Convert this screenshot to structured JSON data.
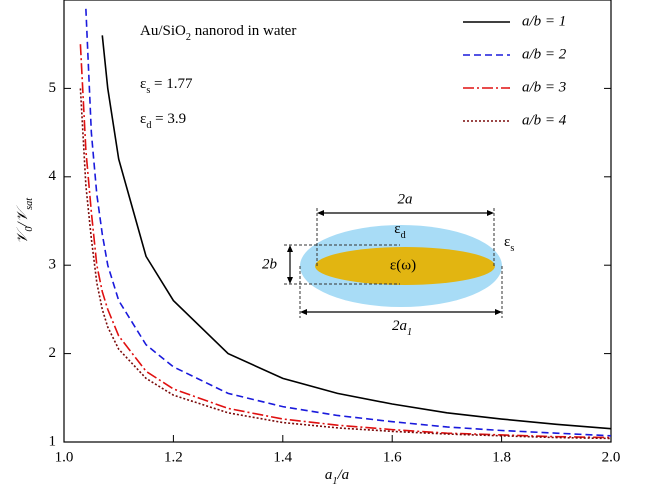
{
  "chart_data": {
    "type": "line",
    "title": [
      "Au/SiO",
      "2",
      " nanorod in water"
    ],
    "annotations": [
      [
        "ε",
        "s",
        " = 1.77"
      ],
      [
        "ε",
        "d",
        " = 3.9"
      ]
    ],
    "xlabel": [
      "a",
      "1",
      "/a"
    ],
    "ylabel": [
      "𝒱",
      "0",
      "/𝒱",
      "sat"
    ],
    "x": [
      1.03,
      1.04,
      1.05,
      1.06,
      1.07,
      1.08,
      1.1,
      1.15,
      1.2,
      1.3,
      1.4,
      1.5,
      1.6,
      1.7,
      1.8,
      1.9,
      2.0
    ],
    "series": [
      {
        "name": "a/b = 1",
        "color": "#000000",
        "dash": "solid",
        "values": [
          null,
          null,
          null,
          null,
          5.6,
          5.0,
          4.2,
          3.1,
          2.6,
          2.0,
          1.72,
          1.55,
          1.43,
          1.33,
          1.26,
          1.2,
          1.15
        ]
      },
      {
        "name": "a/b = 2",
        "color": "#1a1adc",
        "dash": "dashed",
        "values": [
          null,
          5.9,
          4.5,
          3.8,
          3.35,
          3.0,
          2.6,
          2.1,
          1.85,
          1.55,
          1.4,
          1.3,
          1.23,
          1.17,
          1.13,
          1.1,
          1.07
        ]
      },
      {
        "name": "a/b = 3",
        "color": "#e01010",
        "dash": "dashdot",
        "values": [
          5.5,
          4.3,
          3.6,
          3.0,
          2.7,
          2.5,
          2.2,
          1.8,
          1.6,
          1.38,
          1.26,
          1.19,
          1.14,
          1.1,
          1.08,
          1.06,
          1.05
        ]
      },
      {
        "name": "a/b = 4",
        "color": "#7a0a0a",
        "dash": "dotted",
        "values": [
          5.0,
          3.9,
          3.3,
          2.8,
          2.5,
          2.3,
          2.05,
          1.72,
          1.53,
          1.33,
          1.22,
          1.16,
          1.12,
          1.09,
          1.07,
          1.05,
          1.04
        ]
      }
    ],
    "xlim": [
      1.0,
      2.0
    ],
    "xticks": [
      {
        "value": 1.0,
        "label": "1.0"
      },
      {
        "value": 1.2,
        "label": "1.2"
      },
      {
        "value": 1.4,
        "label": "1.4"
      },
      {
        "value": 1.6,
        "label": "1.6"
      },
      {
        "value": 1.8,
        "label": "1.8"
      },
      {
        "value": 2.0,
        "label": "2.0"
      }
    ],
    "ylim": [
      1,
      6
    ],
    "yticks": [
      1,
      2,
      3,
      4,
      5
    ],
    "legend": "upper right",
    "inset": {
      "length_a": "2a",
      "eps_d": [
        "ε",
        "d"
      ],
      "eps_s": [
        "ε",
        "s"
      ],
      "length_b": "2b",
      "eps_core": "ε(ω)",
      "length_a1": [
        "2a",
        "1"
      ]
    }
  }
}
